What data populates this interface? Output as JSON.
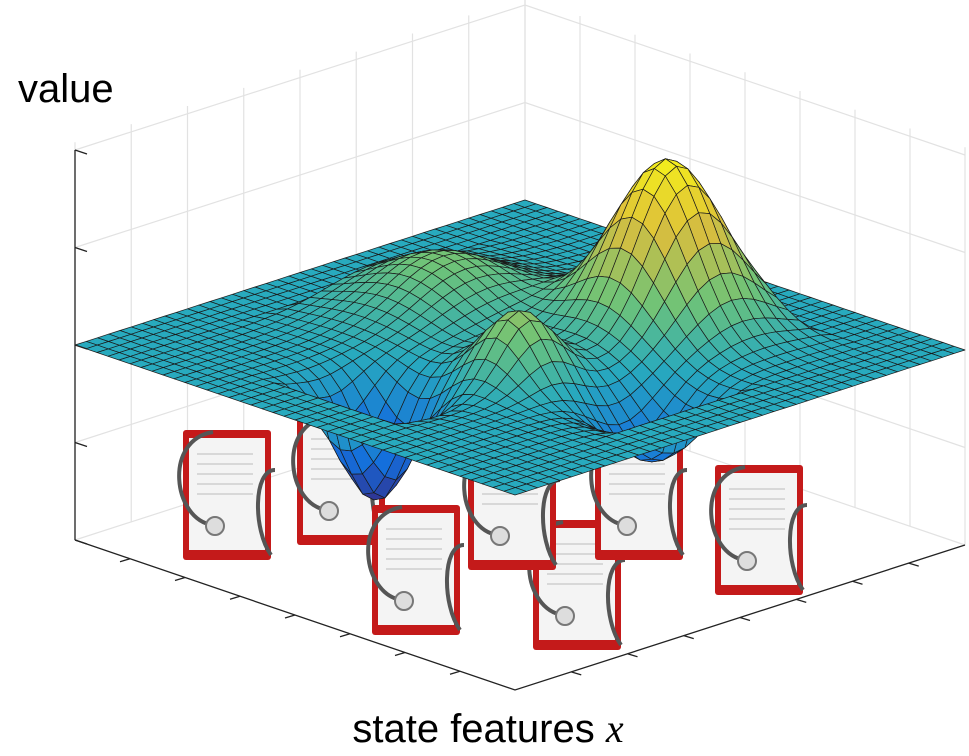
{
  "labels": {
    "value_axis": "value",
    "feature_axis": "state features",
    "feature_variable": "x"
  }
}
